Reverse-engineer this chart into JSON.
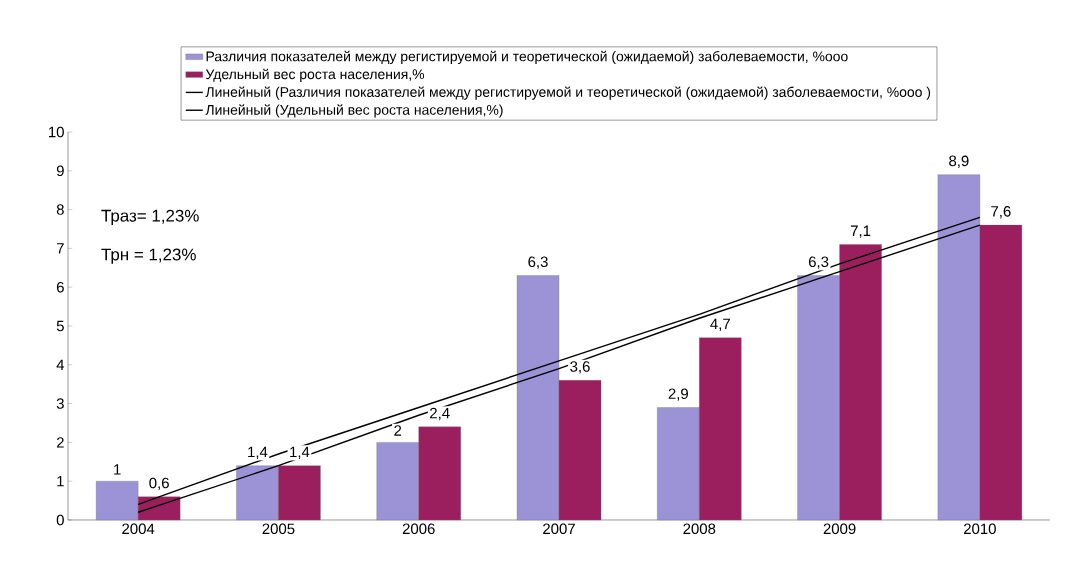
{
  "chart_data": {
    "type": "bar",
    "categories": [
      "2004",
      "2005",
      "2006",
      "2007",
      "2008",
      "2009",
      "2010"
    ],
    "series": [
      {
        "name": "Различия показателей между регистируемой и теоретической (ожидаемой) заболеваемости, %ooo",
        "color": "#9b93d6",
        "values": [
          1,
          1.4,
          2,
          6.3,
          2.9,
          6.3,
          8.9
        ],
        "value_labels": [
          "1",
          "1,4",
          "2",
          "6,3",
          "2,9",
          "6,3",
          "8,9"
        ]
      },
      {
        "name": "Удельный вес роста населения,%",
        "color": "#9b1f5e",
        "values": [
          0.6,
          1.4,
          2.4,
          3.6,
          4.7,
          7.1,
          7.6
        ],
        "value_labels": [
          "0,6",
          "1,4",
          "2,4",
          "3,6",
          "4,7",
          "7,1",
          "7,6"
        ]
      },
      {
        "name": "Линейный (Различия показателей между регистируемой и теоретической (ожидаемой) заболеваемости, %ooo )",
        "type": "line",
        "color": "#000000",
        "values": [
          0.4,
          1.7,
          2.9,
          4.1,
          5.3,
          6.6,
          7.8
        ]
      },
      {
        "name": "Линейный (Удельный вес роста населения,%)",
        "type": "line",
        "color": "#000000",
        "values": [
          0.2,
          1.4,
          2.7,
          3.9,
          5.2,
          6.4,
          7.6
        ]
      }
    ],
    "ylim": [
      0,
      10
    ],
    "yticks": [
      0,
      1,
      2,
      3,
      4,
      5,
      6,
      7,
      8,
      9,
      10
    ],
    "annotations": [
      "Траз= 1,23%",
      "Трн = 1,23%"
    ],
    "legend": "top",
    "grid": false
  }
}
